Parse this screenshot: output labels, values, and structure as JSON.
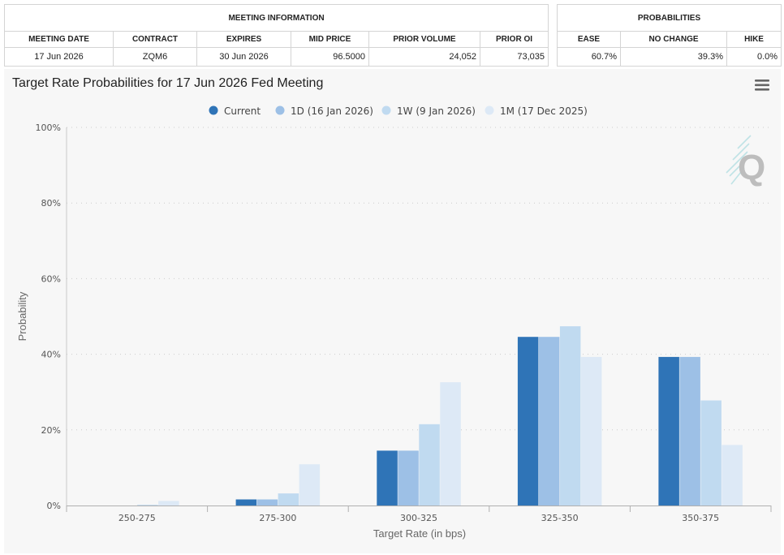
{
  "meeting_info": {
    "title": "MEETING INFORMATION",
    "headers": [
      "MEETING DATE",
      "CONTRACT",
      "EXPIRES",
      "MID PRICE",
      "PRIOR VOLUME",
      "PRIOR OI"
    ],
    "values": [
      "17 Jun 2026",
      "ZQM6",
      "30 Jun 2026",
      "96.5000",
      "24,052",
      "73,035"
    ]
  },
  "probabilities": {
    "title": "PROBABILITIES",
    "headers": [
      "EASE",
      "NO CHANGE",
      "HIKE"
    ],
    "values": [
      "60.7%",
      "39.3%",
      "0.0%"
    ]
  },
  "menu_icon": "hamburger-menu-icon",
  "watermark_icon": "q-logo-watermark",
  "chart_data": {
    "type": "bar",
    "title": "Target Rate Probabilities for 17 Jun 2026 Fed Meeting",
    "xlabel": "Target Rate (in bps)",
    "ylabel": "Probability",
    "categories": [
      "250-275",
      "275-300",
      "300-325",
      "325-350",
      "350-375"
    ],
    "y_ticks": [
      "0%",
      "20%",
      "40%",
      "60%",
      "80%",
      "100%"
    ],
    "ylim": [
      0,
      100
    ],
    "grid": true,
    "legend_position": "top-center",
    "series": [
      {
        "name": "Current",
        "color": "#2f74b7",
        "values": [
          0,
          1.6,
          14.5,
          44.6,
          39.3
        ]
      },
      {
        "name": "1D (16 Jan 2026)",
        "color": "#9dc0e6",
        "values": [
          0,
          1.6,
          14.5,
          44.6,
          39.3
        ]
      },
      {
        "name": "1W (9 Jan 2026)",
        "color": "#c0daf0",
        "values": [
          0.2,
          3.2,
          21.5,
          47.4,
          27.8
        ]
      },
      {
        "name": "1M (17 Dec 2025)",
        "color": "#dde9f6",
        "values": [
          1.2,
          10.9,
          32.6,
          39.3,
          16.0
        ]
      }
    ]
  }
}
